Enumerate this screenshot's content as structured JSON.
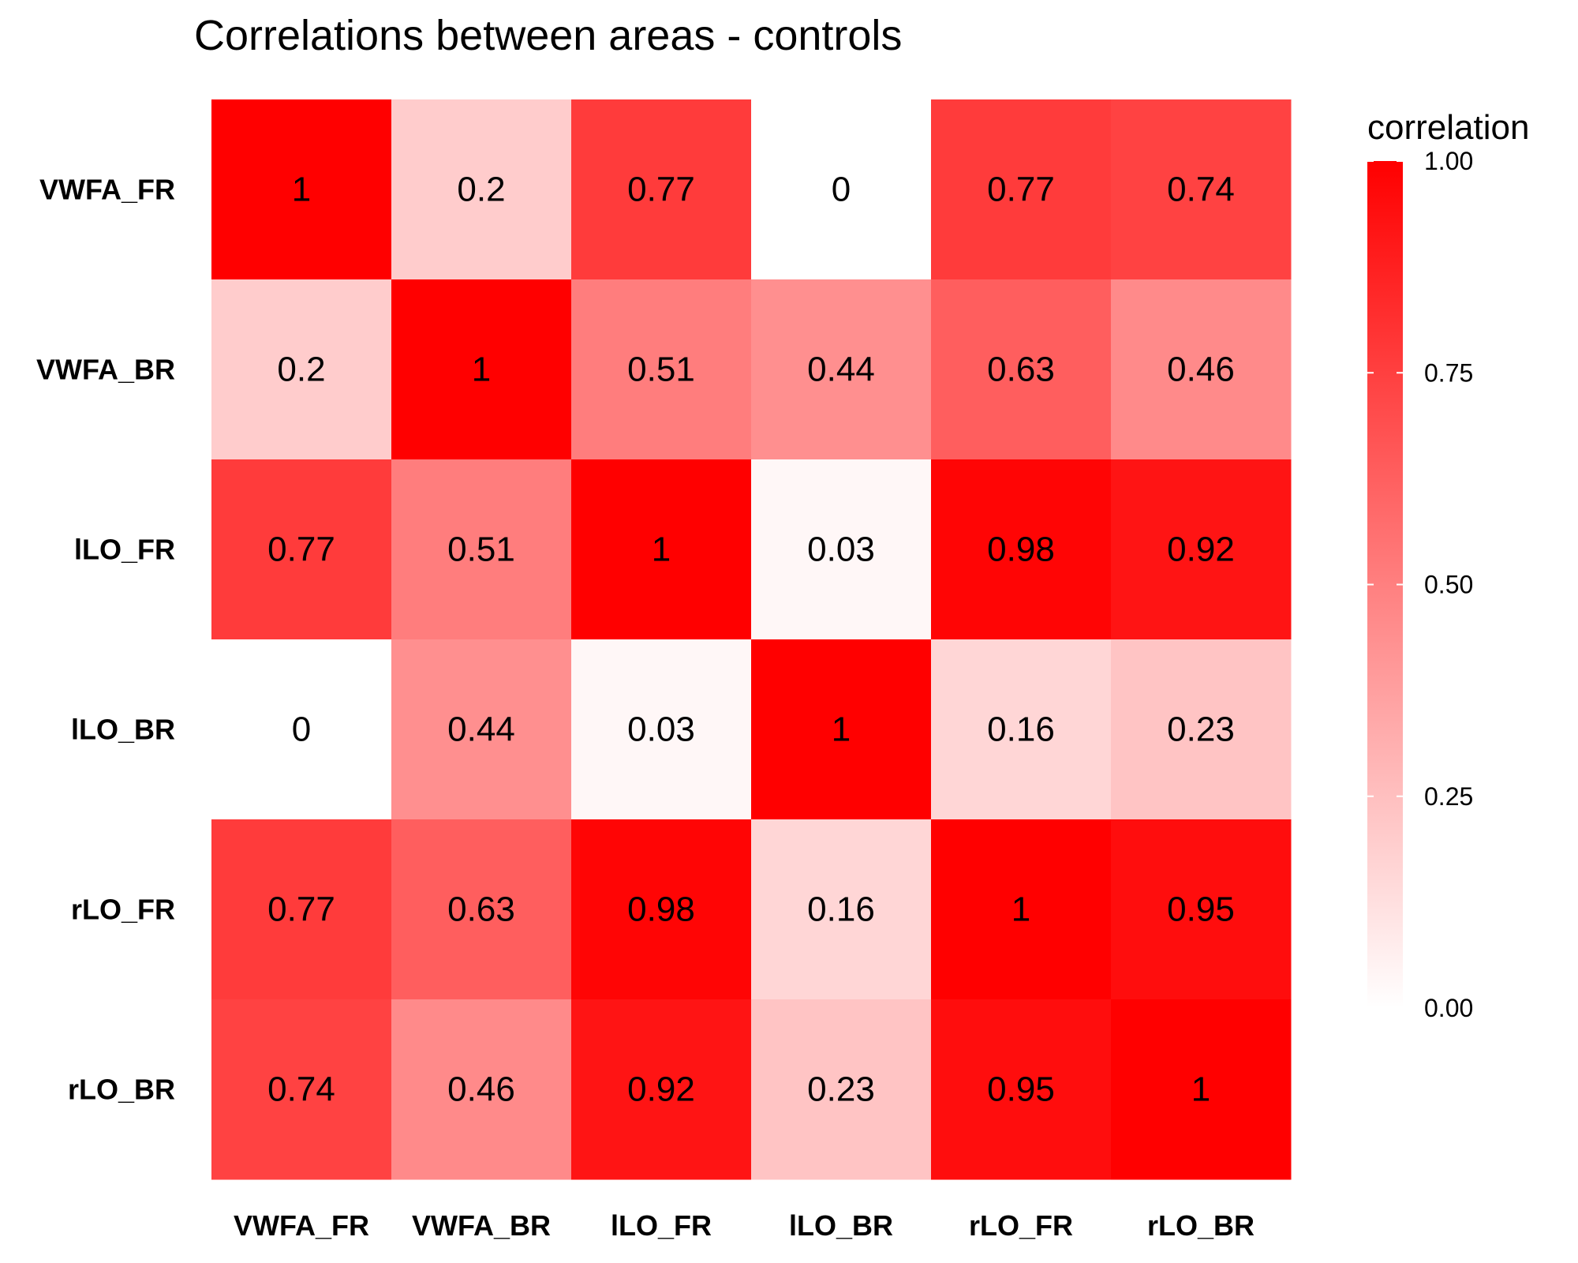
{
  "chart_data": {
    "type": "heatmap",
    "title": "Correlations between areas - controls",
    "x_categories": [
      "VWFA_FR",
      "VWFA_BR",
      "lLO_FR",
      "lLO_BR",
      "rLO_FR",
      "rLO_BR"
    ],
    "y_categories": [
      "VWFA_FR",
      "VWFA_BR",
      "lLO_FR",
      "lLO_BR",
      "rLO_FR",
      "rLO_BR"
    ],
    "values": [
      [
        1,
        0.2,
        0.77,
        0,
        0.77,
        0.74
      ],
      [
        0.2,
        1,
        0.51,
        0.44,
        0.63,
        0.46
      ],
      [
        0.77,
        0.51,
        1,
        0.03,
        0.98,
        0.92
      ],
      [
        0,
        0.44,
        0.03,
        1,
        0.16,
        0.23
      ],
      [
        0.77,
        0.63,
        0.98,
        0.16,
        1,
        0.95
      ],
      [
        0.74,
        0.46,
        0.92,
        0.23,
        0.95,
        1
      ]
    ],
    "legend": {
      "title": "correlation",
      "ticks": [
        "0.00",
        "0.25",
        "0.50",
        "0.75",
        "1.00"
      ],
      "range": [
        0,
        1
      ]
    },
    "colors": {
      "low": "#ffffff",
      "high": "#ff0000"
    },
    "grid": false
  }
}
